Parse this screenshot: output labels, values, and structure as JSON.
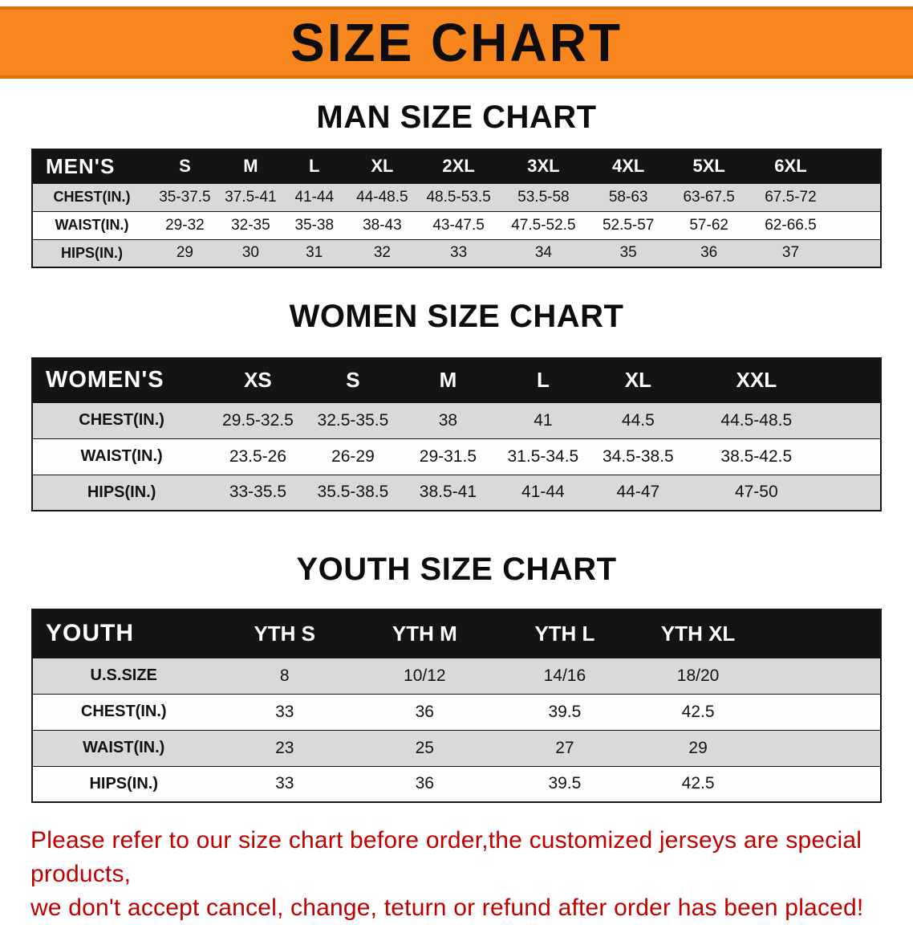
{
  "banner": {
    "title": "SIZE CHART"
  },
  "colors": {
    "banner_orange": "#F6861D",
    "header_black": "#141414",
    "row_gray": "#D9D9D9",
    "row_white": "#FDFDFD",
    "footer_red": "#C00000"
  },
  "men": {
    "heading": "MAN SIZE CHART",
    "table": {
      "header": [
        "MEN'S",
        "S",
        "M",
        "L",
        "XL",
        "2XL",
        "3XL",
        "4XL",
        "5XL",
        "6XL"
      ],
      "rows": [
        [
          "CHEST(IN.)",
          "35-37.5",
          "37.5-41",
          "41-44",
          "44-48.5",
          "48.5-53.5",
          "53.5-58",
          "58-63",
          "63-67.5",
          "67.5-72"
        ],
        [
          "WAIST(IN.)",
          "29-32",
          "32-35",
          "35-38",
          "38-43",
          "43-47.5",
          "47.5-52.5",
          "52.5-57",
          "57-62",
          "62-66.5"
        ],
        [
          "HIPS(IN.)",
          "29",
          "30",
          "31",
          "32",
          "33",
          "34",
          "35",
          "36",
          "37"
        ]
      ]
    }
  },
  "women": {
    "heading": "WOMEN SIZE CHART",
    "table": {
      "header": [
        "WOMEN'S",
        "XS",
        "S",
        "M",
        "L",
        "XL",
        "XXL"
      ],
      "rows": [
        [
          "CHEST(IN.)",
          "29.5-32.5",
          "32.5-35.5",
          "38",
          "41",
          "44.5",
          "44.5-48.5"
        ],
        [
          "WAIST(IN.)",
          "23.5-26",
          "26-29",
          "29-31.5",
          "31.5-34.5",
          "34.5-38.5",
          "38.5-42.5"
        ],
        [
          "HIPS(IN.)",
          "33-35.5",
          "35.5-38.5",
          "38.5-41",
          "41-44",
          "44-47",
          "47-50"
        ]
      ]
    }
  },
  "youth": {
    "heading": "YOUTH SIZE CHART",
    "table": {
      "header": [
        "YOUTH",
        "YTH S",
        "YTH M",
        "YTH L",
        "YTH XL"
      ],
      "rows": [
        [
          "U.S.SIZE",
          "8",
          "10/12",
          "14/16",
          "18/20"
        ],
        [
          "CHEST(IN.)",
          "33",
          "36",
          "39.5",
          "42.5"
        ],
        [
          "WAIST(IN.)",
          "23",
          "25",
          "27",
          "29"
        ],
        [
          "HIPS(IN.)",
          "33",
          "36",
          "39.5",
          "42.5"
        ]
      ]
    }
  },
  "footer": {
    "line1": "Please refer to our size chart before order,the customized jerseys are special products,",
    "line2": "we don't accept cancel, change, teturn or refund after order has been placed!"
  }
}
